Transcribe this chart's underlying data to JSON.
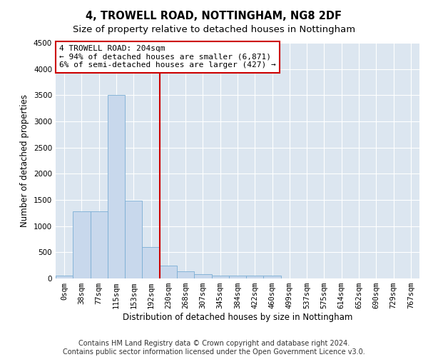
{
  "title": "4, TROWELL ROAD, NOTTINGHAM, NG8 2DF",
  "subtitle": "Size of property relative to detached houses in Nottingham",
  "xlabel": "Distribution of detached houses by size in Nottingham",
  "ylabel": "Number of detached properties",
  "bar_labels": [
    "0sqm",
    "38sqm",
    "77sqm",
    "115sqm",
    "153sqm",
    "192sqm",
    "230sqm",
    "268sqm",
    "307sqm",
    "345sqm",
    "384sqm",
    "422sqm",
    "460sqm",
    "499sqm",
    "537sqm",
    "575sqm",
    "614sqm",
    "652sqm",
    "690sqm",
    "729sqm",
    "767sqm"
  ],
  "bar_values": [
    50,
    1280,
    1280,
    3500,
    1490,
    600,
    250,
    130,
    80,
    55,
    55,
    55,
    50,
    0,
    0,
    0,
    0,
    0,
    0,
    0,
    0
  ],
  "bar_color": "#c8d8ec",
  "bar_edge_color": "#7aadd4",
  "red_line_x": 5.5,
  "annotation_line1": "4 TROWELL ROAD: 204sqm",
  "annotation_line2": "← 94% of detached houses are smaller (6,871)",
  "annotation_line3": "6% of semi-detached houses are larger (427) →",
  "annotation_box_color": "#ffffff",
  "annotation_box_edge_color": "#cc0000",
  "red_line_color": "#cc0000",
  "ylim": [
    0,
    4500
  ],
  "yticks": [
    0,
    500,
    1000,
    1500,
    2000,
    2500,
    3000,
    3500,
    4000,
    4500
  ],
  "footer_line1": "Contains HM Land Registry data © Crown copyright and database right 2024.",
  "footer_line2": "Contains public sector information licensed under the Open Government Licence v3.0.",
  "title_fontsize": 10.5,
  "subtitle_fontsize": 9.5,
  "axis_label_fontsize": 8.5,
  "tick_fontsize": 7.5,
  "annotation_fontsize": 8,
  "footer_fontsize": 7,
  "bg_color": "#dce6f0"
}
